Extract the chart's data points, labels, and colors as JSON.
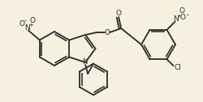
{
  "bg_color": "#f5f0e0",
  "line_color": "#2a2a2a",
  "lw": 1.3,
  "figsize": [
    2.51,
    1.26
  ],
  "dpi": 100,
  "xlim": [
    0,
    251
  ],
  "ylim": [
    0,
    126
  ]
}
